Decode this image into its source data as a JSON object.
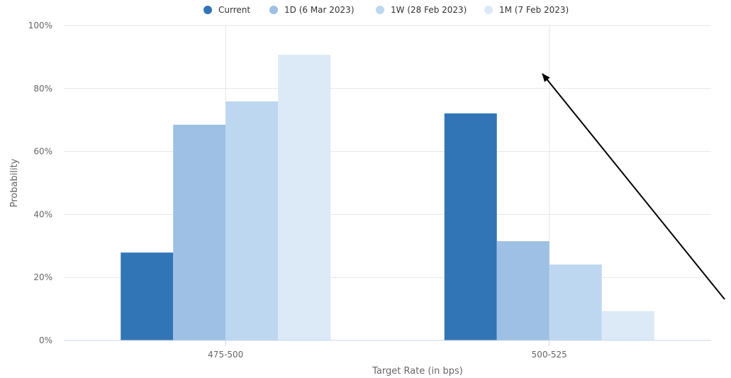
{
  "chart_data": {
    "type": "bar",
    "categories": [
      "475-500",
      "500-525"
    ],
    "series": [
      {
        "name": "Current",
        "values": [
          27.9,
          72.1
        ],
        "color": "#3275b6"
      },
      {
        "name": "1D (6 Mar 2023)",
        "values": [
          68.5,
          31.5
        ],
        "color": "#9dc0e4"
      },
      {
        "name": "1W (28 Feb 2023)",
        "values": [
          75.9,
          24.1
        ],
        "color": "#bed7f0"
      },
      {
        "name": "1M (7 Feb 2023)",
        "values": [
          90.7,
          9.3
        ],
        "color": "#dce9f6"
      }
    ],
    "xlabel": "Target Rate (in bps)",
    "ylabel": "Probability",
    "ylim": [
      0,
      100
    ],
    "yticks": [
      "0%",
      "20%",
      "40%",
      "60%",
      "80%",
      "100%"
    ],
    "grid": true,
    "legend": "top-center",
    "annotation": "arrow"
  }
}
